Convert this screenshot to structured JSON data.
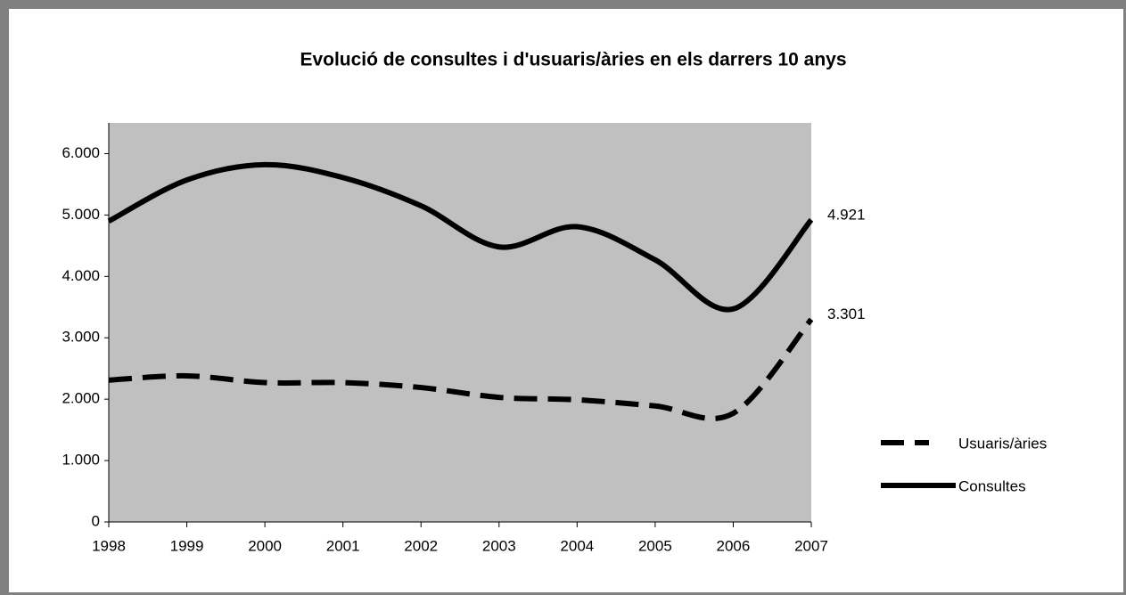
{
  "chart_data": {
    "type": "line",
    "title": "Evolució de consultes i d'usuaris/àries en els darrers 10 anys",
    "x": [
      1998,
      1999,
      2000,
      2001,
      2002,
      2003,
      2004,
      2005,
      2006,
      2007
    ],
    "xlim": [
      1998,
      2007
    ],
    "xticks": [
      1998,
      1999,
      2000,
      2001,
      2002,
      2003,
      2004,
      2005,
      2006,
      2007
    ],
    "ylim": [
      0,
      6500
    ],
    "yticks": [
      0,
      {
        "value": 1000,
        "label": "1.000"
      },
      {
        "value": 2000,
        "label": "2.000"
      },
      {
        "value": 3000,
        "label": "3.000"
      },
      {
        "value": 4000,
        "label": "4.000"
      },
      {
        "value": 5000,
        "label": "5.000"
      },
      {
        "value": 6000,
        "label": "6.000"
      }
    ],
    "series": [
      {
        "name": "Usuaris/àries",
        "color": "#000000",
        "dashed": true,
        "values": [
          2310,
          2380,
          2270,
          2270,
          2190,
          2030,
          1990,
          1890,
          1770,
          3301
        ],
        "value_labels": [
          null,
          null,
          null,
          null,
          null,
          null,
          null,
          null,
          null,
          "3.301"
        ]
      },
      {
        "name": "Consultes",
        "color": "#000000",
        "dashed": false,
        "values": [
          4900,
          5570,
          5820,
          5610,
          5150,
          4480,
          4810,
          4270,
          3470,
          4921
        ],
        "value_labels": [
          null,
          null,
          null,
          null,
          null,
          null,
          null,
          null,
          null,
          "4.921"
        ]
      }
    ],
    "plot_background": "#c0c0c0",
    "legend": "right"
  }
}
